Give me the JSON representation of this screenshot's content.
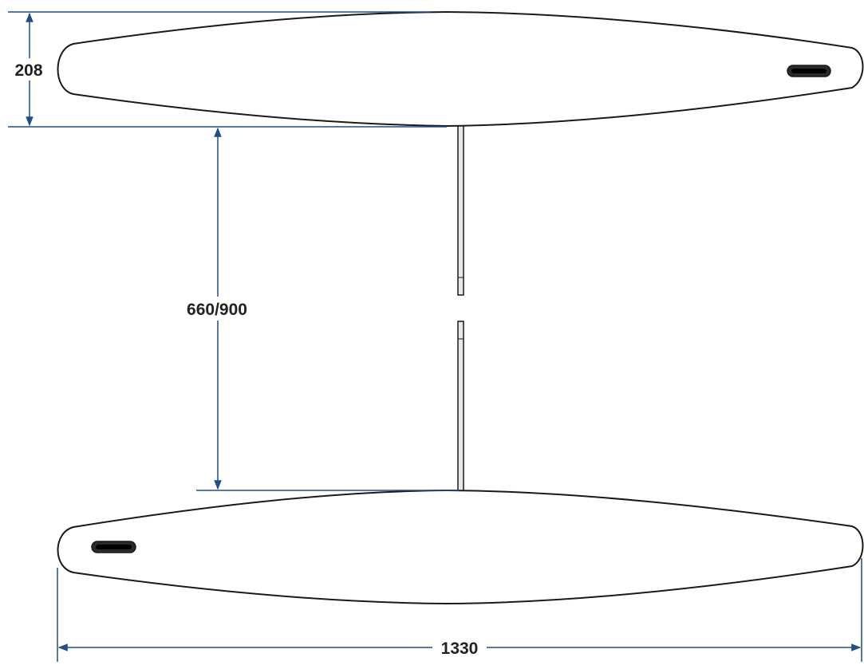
{
  "colors": {
    "outline": "#1a1a1a",
    "dimension_line": "#1f4e8c",
    "strut_fill": "#e8e8e8",
    "handle_fill": "#2a2a2a",
    "background": "#ffffff"
  },
  "dimensions": {
    "hull_height": "208",
    "gap_length": "660/900",
    "overall_length": "1330"
  }
}
